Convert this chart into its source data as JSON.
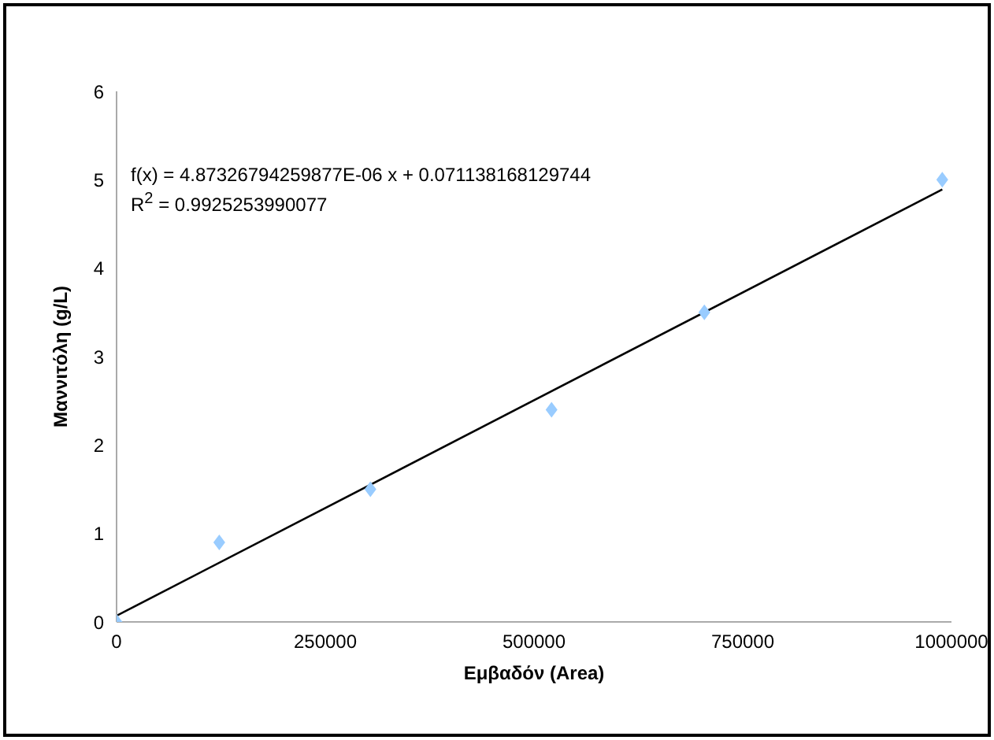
{
  "chart_data": {
    "type": "scatter",
    "xlabel": "Εμβαδόν (Area)",
    "ylabel": "Μαννιτόλη (g/L)",
    "xlim": [
      0,
      1000000
    ],
    "xticks": [
      0,
      250000,
      500000,
      750000,
      1000000
    ],
    "ylim": [
      0,
      6
    ],
    "yticks": [
      0,
      1,
      2,
      3,
      4,
      5,
      6
    ],
    "grid": false,
    "legend": false,
    "series": [
      {
        "marker": "diamond",
        "color": "#99ccff",
        "x": [
          0,
          123000,
          304000,
          521000,
          704000,
          989000
        ],
        "values": [
          0,
          0.9,
          1.5,
          2.4,
          3.5,
          5.0
        ]
      },
      {
        "type": "line",
        "color": "#000000",
        "x": [
          0,
          989000
        ],
        "values": [
          0.07,
          4.89
        ]
      }
    ],
    "annotations": [
      "f(x) = 4.87326794259877E-06 x + 0.071138168129744",
      "R$^{2}$ = 0.9925253990077"
    ]
  }
}
